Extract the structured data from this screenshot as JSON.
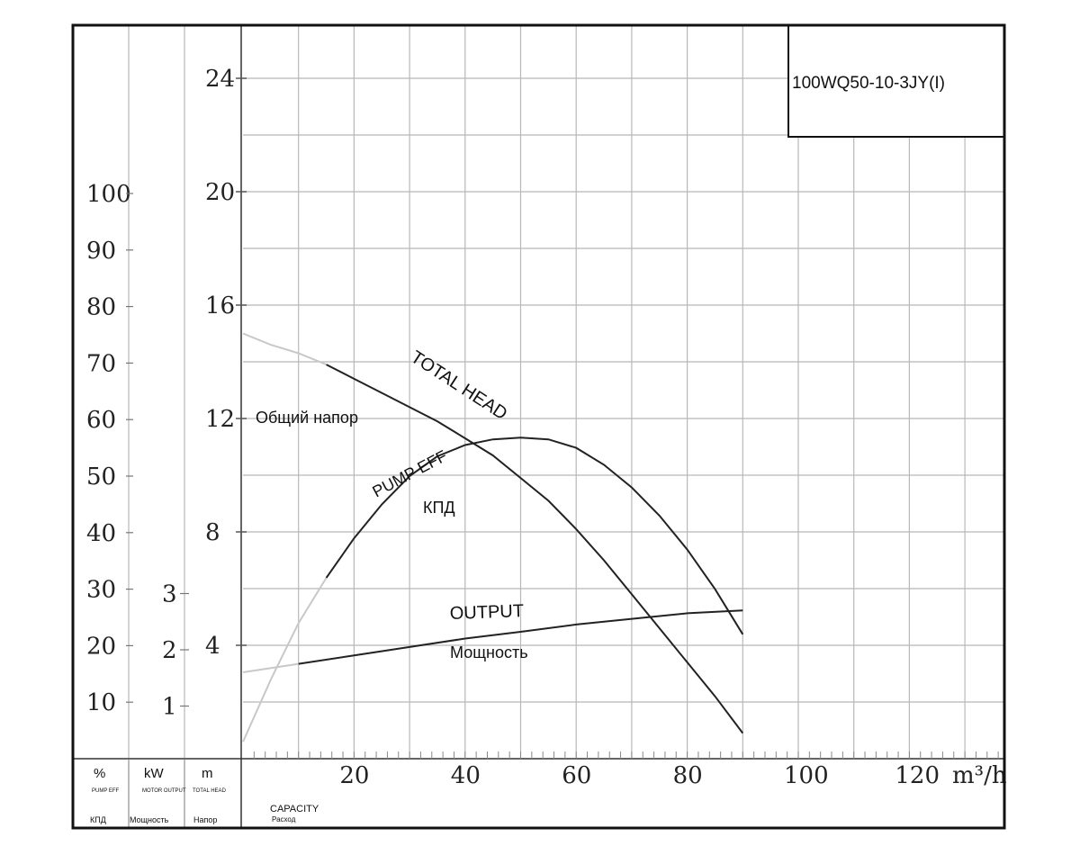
{
  "chart_data": {
    "type": "line",
    "model": "100WQ50-10-3JY(I)",
    "x": {
      "ticks": [
        20,
        40,
        60,
        80,
        100,
        120
      ],
      "unit": "m³/h",
      "label": "CAPACITY",
      "label_ru": "Расход",
      "range": [
        0,
        140
      ]
    },
    "axes": {
      "efficiency": {
        "unit": "%",
        "label": "PUMP EFF",
        "label_ru": "КПД",
        "ticks": [
          10,
          20,
          30,
          40,
          50,
          60,
          70,
          80,
          90,
          100
        ]
      },
      "power": {
        "unit": "kW",
        "label": "MOTOR OUTPUT",
        "label_ru": "Мощность",
        "ticks": [
          1,
          2,
          3
        ]
      },
      "head": {
        "unit": "m",
        "label": "TOTAL HEAD",
        "label_ru": "Напор",
        "ticks": [
          4,
          8,
          12,
          16,
          20,
          24
        ],
        "range": [
          0,
          26
        ]
      }
    },
    "series": [
      {
        "name": "TOTAL HEAD",
        "name_ru": "Общий напор",
        "axis": "head",
        "x": [
          0,
          5,
          10,
          15,
          20,
          25,
          30,
          35,
          40,
          45,
          50,
          55,
          60,
          65,
          70,
          75,
          80,
          85,
          90
        ],
        "values": [
          15.0,
          14.6,
          14.3,
          13.9,
          13.4,
          12.9,
          12.4,
          11.9,
          11.3,
          10.7,
          9.9,
          9.1,
          8.1,
          7.0,
          5.8,
          4.6,
          3.4,
          2.2,
          0.9
        ]
      },
      {
        "name": "PUMP EFF",
        "name_ru": "КПД",
        "axis": "efficiency",
        "x": [
          0,
          5,
          10,
          15,
          20,
          25,
          30,
          35,
          40,
          45,
          50,
          55,
          60,
          65,
          70,
          75,
          80,
          85,
          90
        ],
        "values": [
          3,
          14,
          24,
          32,
          39,
          45,
          50,
          53.5,
          55.5,
          56.5,
          56.8,
          56.5,
          55,
          52,
          48,
          43,
          37,
          30,
          22
        ]
      },
      {
        "name": "OUTPUT",
        "name_ru": "Мощность",
        "axis": "power",
        "x": [
          0,
          10,
          20,
          30,
          40,
          50,
          60,
          70,
          80,
          90
        ],
        "values": [
          1.6,
          1.75,
          1.9,
          2.05,
          2.2,
          2.32,
          2.45,
          2.55,
          2.65,
          2.7
        ]
      }
    ],
    "annotations": [
      "TOTAL HEAD",
      "Общий напор",
      "PUMP EFF",
      "КПД",
      "OUTPUT",
      "Мощность"
    ],
    "grid": true
  },
  "header_labels": {
    "eff_unit": "%",
    "eff_en": "PUMP EFF",
    "eff_ru": "КПД",
    "pow_unit": "kW",
    "pow_en": "MOTOR OUTPUT",
    "pow_ru": "Мощность",
    "head_unit": "m",
    "head_en": "TOTAL HEAD",
    "head_ru": "Напор",
    "cap_en": "CAPACITY",
    "cap_ru": "Расход",
    "x_unit": "m³/h"
  }
}
